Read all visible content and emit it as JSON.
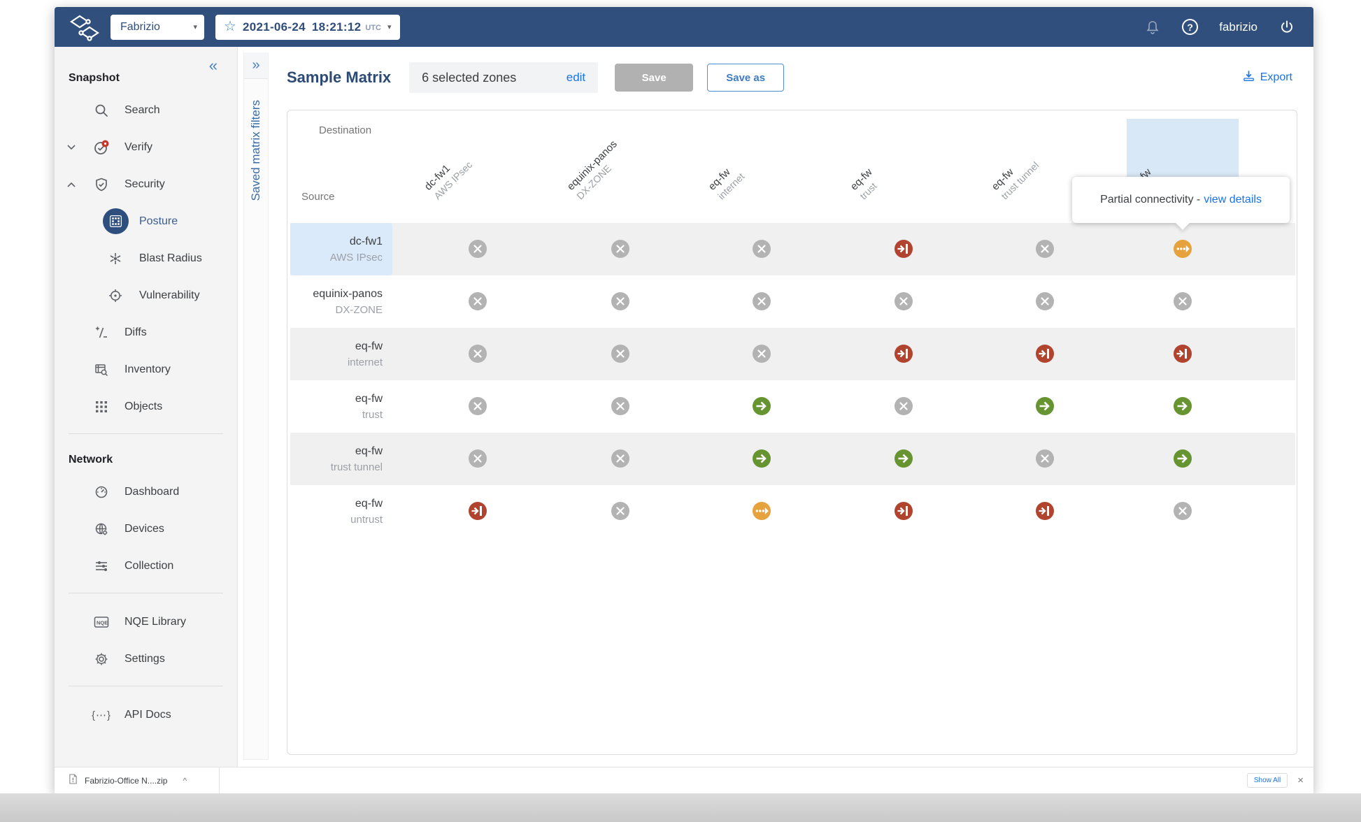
{
  "topbar": {
    "network_selector": {
      "value": "Fabrizio"
    },
    "snapshot_picker": {
      "date": "2021-06-24",
      "time": "18:21:12",
      "timezone": "UTC"
    },
    "username": "fabrizio"
  },
  "sidebar": {
    "sections": {
      "snapshot": "Snapshot",
      "network": "Network"
    },
    "items": {
      "search": "Search",
      "verify": "Verify",
      "security": "Security",
      "posture": "Posture",
      "blast_radius": "Blast Radius",
      "vulnerability": "Vulnerability",
      "diffs": "Diffs",
      "inventory": "Inventory",
      "objects": "Objects",
      "dashboard": "Dashboard",
      "devices": "Devices",
      "collection": "Collection",
      "nqe_library": "NQE Library",
      "settings": "Settings",
      "api_docs": "API Docs"
    }
  },
  "filters_rail": {
    "label": "Saved matrix filters"
  },
  "toolbar": {
    "title": "Sample Matrix",
    "zones_summary": "6 selected zones",
    "edit_label": "edit",
    "save_label": "Save",
    "save_as_label": "Save as",
    "export_label": "Export"
  },
  "matrix": {
    "destination_label": "Destination",
    "source_label": "Source",
    "columns": [
      {
        "device": "dc-fw1",
        "zone": "AWS IPsec"
      },
      {
        "device": "equinix-panos",
        "zone": "DX-ZONE"
      },
      {
        "device": "eq-fw",
        "zone": "internet"
      },
      {
        "device": "eq-fw",
        "zone": "trust"
      },
      {
        "device": "eq-fw",
        "zone": "trust tunnel"
      },
      {
        "device": "eq-fw",
        "zone": ""
      }
    ],
    "rows": [
      {
        "device": "dc-fw1",
        "zone": "AWS IPsec"
      },
      {
        "device": "equinix-panos",
        "zone": "DX-ZONE"
      },
      {
        "device": "eq-fw",
        "zone": "internet"
      },
      {
        "device": "eq-fw",
        "zone": "trust"
      },
      {
        "device": "eq-fw",
        "zone": "trust tunnel"
      },
      {
        "device": "eq-fw",
        "zone": "untrust"
      }
    ],
    "grid": [
      [
        "none",
        "none",
        "none",
        "blocked",
        "none",
        "partial"
      ],
      [
        "none",
        "none",
        "none",
        "none",
        "none",
        "none"
      ],
      [
        "none",
        "none",
        "none",
        "blocked",
        "blocked",
        "blocked"
      ],
      [
        "none",
        "none",
        "connected",
        "none",
        "connected",
        "connected"
      ],
      [
        "none",
        "none",
        "connected",
        "connected",
        "none",
        "connected"
      ],
      [
        "blocked",
        "none",
        "partial",
        "blocked",
        "blocked",
        "none"
      ]
    ],
    "cell_states": {
      "none": "no-connectivity-x-icon",
      "connected": "full-connectivity-arrow-icon",
      "blocked": "blocked-arrow-into-wall-icon",
      "partial": "partial-connectivity-dotted-arrow-icon"
    }
  },
  "tooltip": {
    "text": "Partial connectivity -",
    "link_label": "view details"
  },
  "download_bar": {
    "filename": "Fabrizio-Office N....zip",
    "show_all_label": "Show All",
    "close_label": "×"
  },
  "colors": {
    "navy": "#2f4d7a",
    "accent_blue": "#1a73e8",
    "connected_green": "#669431",
    "blocked_red": "#b0442e",
    "partial_orange": "#e6a23c",
    "none_gray": "#b3b3b3",
    "column_highlight": "#d9e8f7",
    "row_hover_blue": "#dbeafb"
  }
}
